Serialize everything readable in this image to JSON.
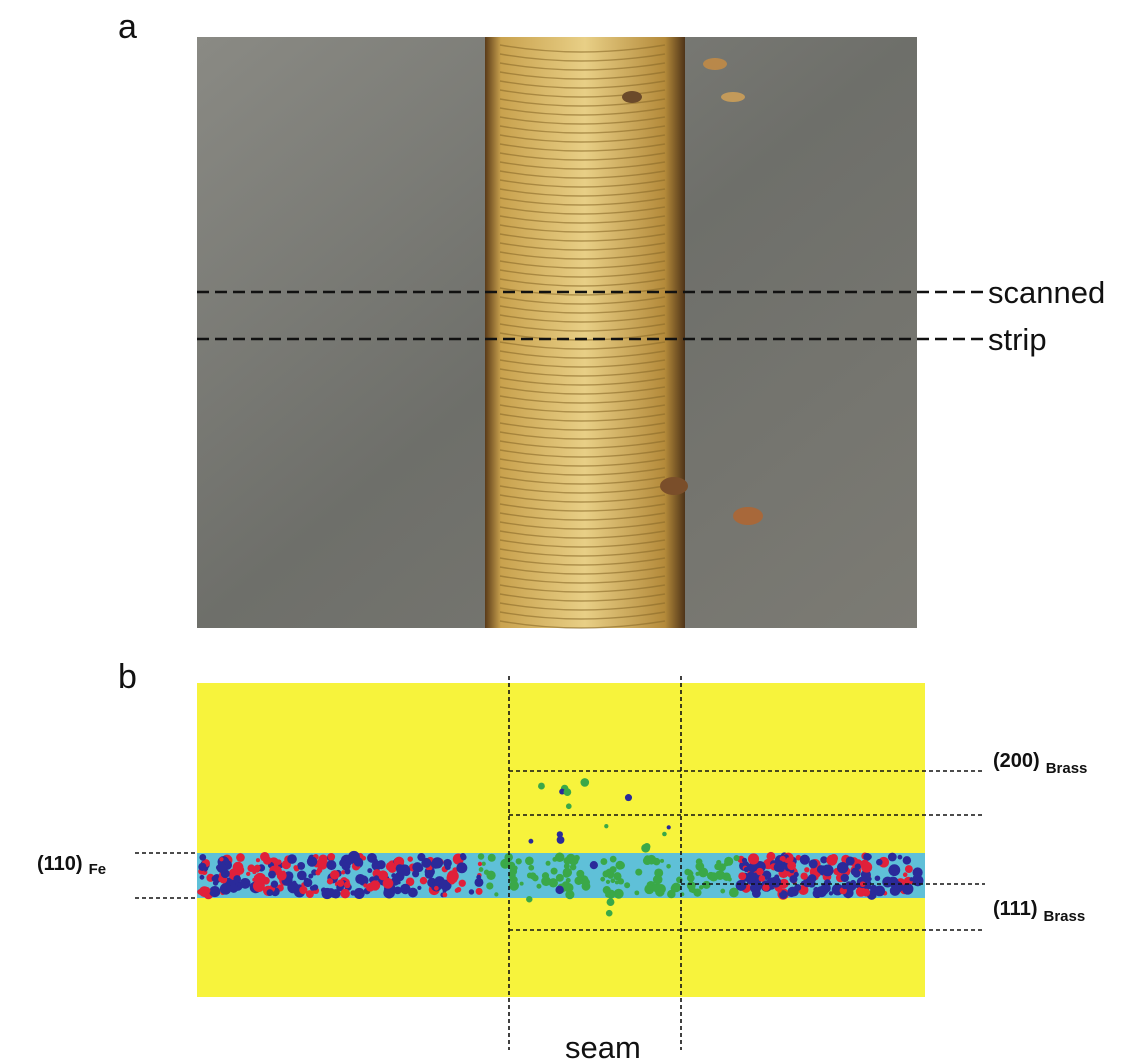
{
  "panel_a": {
    "label": "a",
    "annotations": [
      "scanned",
      "strip"
    ]
  },
  "panel_b": {
    "label": "b",
    "peaks": [
      {
        "main": "(110)",
        "sub": "Fe"
      },
      {
        "main": "(200)",
        "sub": "Brass"
      },
      {
        "main": "(111)",
        "sub": "Brass"
      }
    ],
    "seam": "seam"
  }
}
